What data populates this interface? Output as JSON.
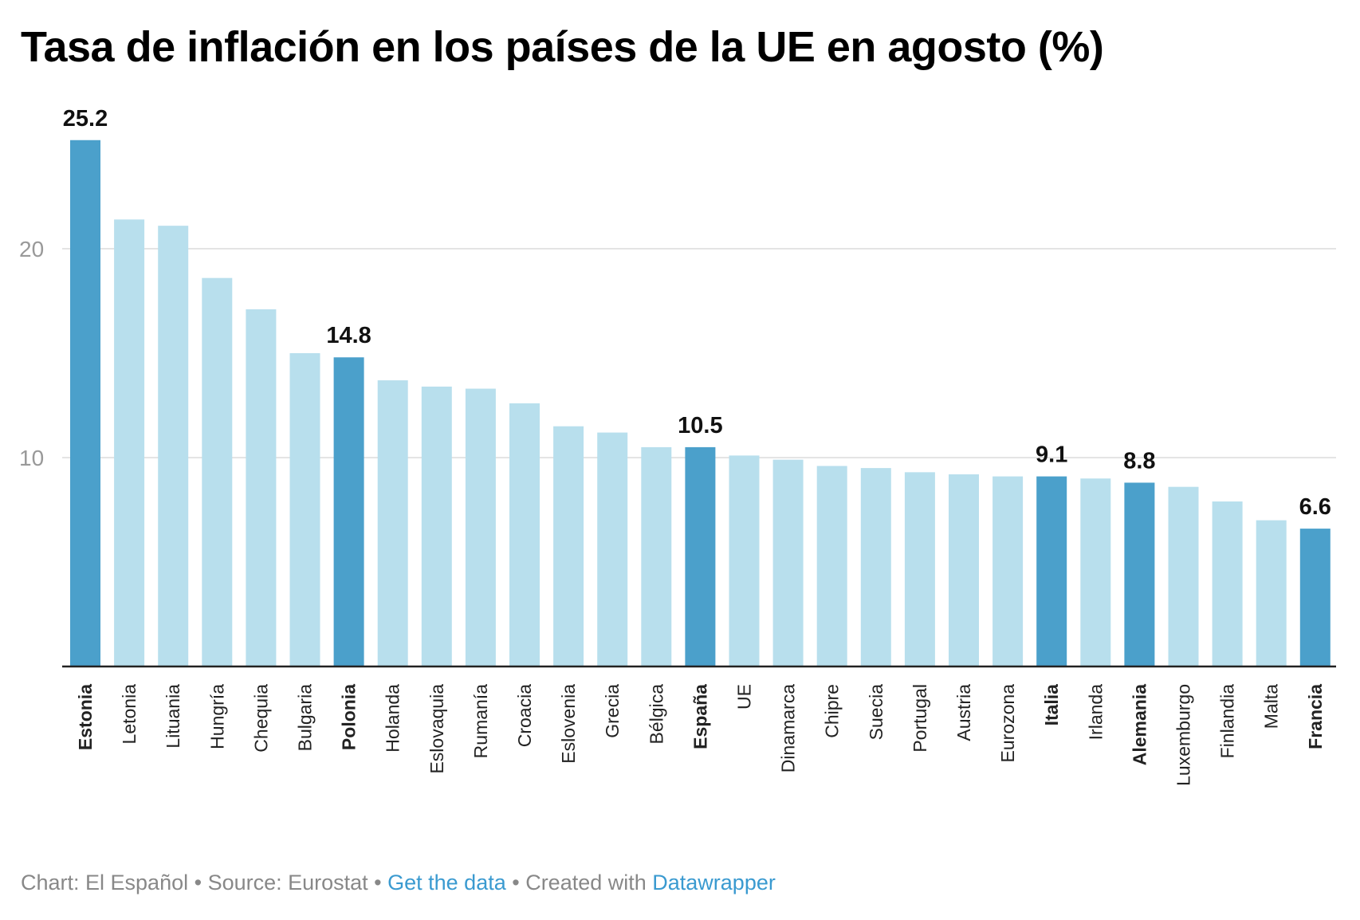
{
  "chart_data": {
    "type": "bar",
    "title": "Tasa de inflación en los países de la UE en agosto (%)",
    "categories": [
      "Estonia",
      "Letonia",
      "Lituania",
      "Hungría",
      "Chequia",
      "Bulgaria",
      "Polonia",
      "Holanda",
      "Eslovaquia",
      "Rumanía",
      "Croacia",
      "Eslovenia",
      "Grecia",
      "Bélgica",
      "España",
      "UE",
      "Dinamarca",
      "Chipre",
      "Suecia",
      "Portugal",
      "Austria",
      "Eurozona",
      "Italia",
      "Irlanda",
      "Alemania",
      "Luxemburgo",
      "Finlandia",
      "Malta",
      "Francia"
    ],
    "values": [
      25.2,
      21.4,
      21.1,
      18.6,
      17.1,
      15.0,
      14.8,
      13.7,
      13.4,
      13.3,
      12.6,
      11.5,
      11.2,
      10.5,
      10.5,
      10.1,
      9.9,
      9.6,
      9.5,
      9.3,
      9.2,
      9.1,
      9.1,
      9.0,
      8.8,
      8.6,
      7.9,
      7.0,
      6.6
    ],
    "highlighted": [
      "Estonia",
      "Polonia",
      "España",
      "Italia",
      "Alemania",
      "Francia"
    ],
    "data_labels": {
      "Estonia": "25.2",
      "Polonia": "14.8",
      "España": "10.5",
      "Italia": "9.1",
      "Alemania": "8.8",
      "Francia": "6.6"
    },
    "yticks": [
      "10",
      "20"
    ],
    "ylim": [
      0,
      25.2
    ],
    "grid": true,
    "xlabel": "",
    "ylabel": "",
    "colors": {
      "highlight": "#4ba0cb",
      "default": "#b8dfed",
      "grid": "#e4e4e4",
      "axis": "#222222"
    }
  },
  "footer": {
    "prefix": "Chart: El Español • Source: Eurostat • ",
    "get_data": "Get the data",
    "middle": " • Created with ",
    "datawrapper": "Datawrapper"
  }
}
